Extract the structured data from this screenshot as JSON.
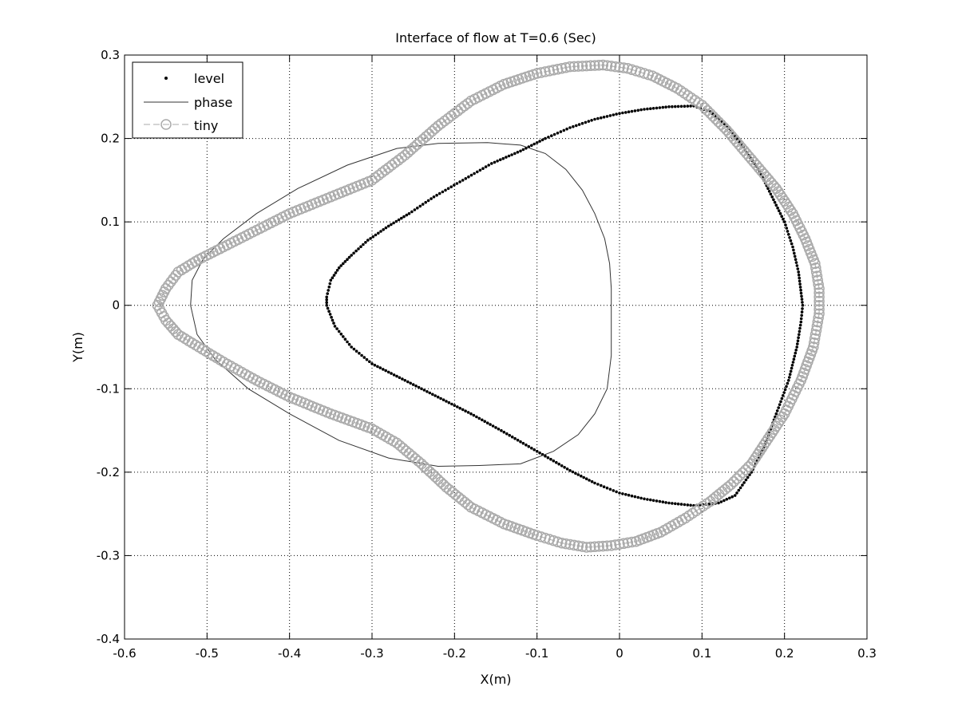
{
  "chart_data": {
    "type": "scatter",
    "title": "Interface of flow at T=0.6 (Sec)",
    "xlabel": "X(m)",
    "ylabel": "Y(m)",
    "xlim": [
      -0.6,
      0.3
    ],
    "ylim": [
      -0.4,
      0.3
    ],
    "xticks": [
      -0.6,
      -0.5,
      -0.4,
      -0.3,
      -0.2,
      -0.1,
      0,
      0.1,
      0.2,
      0.3
    ],
    "xtick_labels": [
      "-0.6",
      "-0.5",
      "-0.4",
      "-0.3",
      "-0.2",
      "-0.1",
      "0",
      "0.1",
      "0.2",
      "0.3"
    ],
    "yticks": [
      -0.4,
      -0.3,
      -0.2,
      -0.1,
      0,
      0.1,
      0.2,
      0.3
    ],
    "ytick_labels": [
      "-0.4",
      "-0.3",
      "-0.2",
      "-0.1",
      "0",
      "0.1",
      "0.2",
      "0.3"
    ],
    "grid": true,
    "legend_position": "top-left",
    "series": [
      {
        "name": "level",
        "style": "dots",
        "color": "#000000",
        "points": [
          [
            -0.355,
            0.01
          ],
          [
            -0.35,
            0.03
          ],
          [
            -0.34,
            0.045
          ],
          [
            -0.325,
            0.06
          ],
          [
            -0.305,
            0.078
          ],
          [
            -0.28,
            0.095
          ],
          [
            -0.255,
            0.11
          ],
          [
            -0.225,
            0.13
          ],
          [
            -0.19,
            0.15
          ],
          [
            -0.155,
            0.17
          ],
          [
            -0.12,
            0.185
          ],
          [
            -0.09,
            0.2
          ],
          [
            -0.06,
            0.213
          ],
          [
            -0.03,
            0.223
          ],
          [
            0.0,
            0.23
          ],
          [
            0.03,
            0.235
          ],
          [
            0.06,
            0.238
          ],
          [
            0.09,
            0.239
          ],
          [
            0.11,
            0.232
          ],
          [
            0.13,
            0.215
          ],
          [
            0.15,
            0.19
          ],
          [
            0.17,
            0.16
          ],
          [
            0.185,
            0.13
          ],
          [
            0.2,
            0.1
          ],
          [
            0.21,
            0.07
          ],
          [
            0.217,
            0.04
          ],
          [
            0.222,
            0.0
          ],
          [
            0.22,
            -0.02
          ],
          [
            0.215,
            -0.05
          ],
          [
            0.205,
            -0.09
          ],
          [
            0.19,
            -0.13
          ],
          [
            0.175,
            -0.17
          ],
          [
            0.16,
            -0.2
          ],
          [
            0.14,
            -0.228
          ],
          [
            0.12,
            -0.237
          ],
          [
            0.09,
            -0.24
          ],
          [
            0.06,
            -0.237
          ],
          [
            0.03,
            -0.232
          ],
          [
            0.0,
            -0.225
          ],
          [
            -0.03,
            -0.213
          ],
          [
            -0.06,
            -0.198
          ],
          [
            -0.1,
            -0.175
          ],
          [
            -0.14,
            -0.152
          ],
          [
            -0.18,
            -0.13
          ],
          [
            -0.22,
            -0.11
          ],
          [
            -0.26,
            -0.09
          ],
          [
            -0.3,
            -0.07
          ],
          [
            -0.325,
            -0.05
          ],
          [
            -0.345,
            -0.025
          ],
          [
            -0.355,
            0.0
          ],
          [
            -0.355,
            0.01
          ]
        ]
      },
      {
        "name": "phase",
        "style": "line",
        "color": "#333333",
        "points": [
          [
            -0.52,
            0.0
          ],
          [
            -0.518,
            0.03
          ],
          [
            -0.505,
            0.055
          ],
          [
            -0.48,
            0.08
          ],
          [
            -0.44,
            0.11
          ],
          [
            -0.39,
            0.14
          ],
          [
            -0.33,
            0.168
          ],
          [
            -0.27,
            0.188
          ],
          [
            -0.22,
            0.194
          ],
          [
            -0.16,
            0.195
          ],
          [
            -0.12,
            0.192
          ],
          [
            -0.09,
            0.182
          ],
          [
            -0.065,
            0.163
          ],
          [
            -0.045,
            0.138
          ],
          [
            -0.03,
            0.11
          ],
          [
            -0.018,
            0.08
          ],
          [
            -0.012,
            0.05
          ],
          [
            -0.01,
            0.02
          ],
          [
            -0.01,
            -0.02
          ],
          [
            -0.01,
            -0.06
          ],
          [
            -0.015,
            -0.1
          ],
          [
            -0.03,
            -0.13
          ],
          [
            -0.05,
            -0.155
          ],
          [
            -0.08,
            -0.175
          ],
          [
            -0.12,
            -0.19
          ],
          [
            -0.17,
            -0.192
          ],
          [
            -0.22,
            -0.193
          ],
          [
            -0.28,
            -0.183
          ],
          [
            -0.34,
            -0.162
          ],
          [
            -0.4,
            -0.13
          ],
          [
            -0.45,
            -0.1
          ],
          [
            -0.49,
            -0.065
          ],
          [
            -0.512,
            -0.035
          ],
          [
            -0.52,
            0.0
          ]
        ]
      },
      {
        "name": "tiny",
        "style": "circles-dashed",
        "color": "#aaaaaa",
        "points": [
          [
            -0.56,
            0.0
          ],
          [
            -0.55,
            0.02
          ],
          [
            -0.535,
            0.04
          ],
          [
            -0.51,
            0.055
          ],
          [
            -0.48,
            0.07
          ],
          [
            -0.44,
            0.09
          ],
          [
            -0.4,
            0.11
          ],
          [
            -0.35,
            0.13
          ],
          [
            -0.3,
            0.15
          ],
          [
            -0.26,
            0.18
          ],
          [
            -0.22,
            0.215
          ],
          [
            -0.18,
            0.245
          ],
          [
            -0.14,
            0.265
          ],
          [
            -0.1,
            0.278
          ],
          [
            -0.06,
            0.286
          ],
          [
            -0.02,
            0.288
          ],
          [
            0.01,
            0.284
          ],
          [
            0.04,
            0.275
          ],
          [
            0.07,
            0.26
          ],
          [
            0.1,
            0.24
          ],
          [
            0.13,
            0.21
          ],
          [
            0.16,
            0.175
          ],
          [
            0.19,
            0.14
          ],
          [
            0.21,
            0.11
          ],
          [
            0.225,
            0.08
          ],
          [
            0.237,
            0.05
          ],
          [
            0.242,
            0.02
          ],
          [
            0.242,
            -0.01
          ],
          [
            0.235,
            -0.05
          ],
          [
            0.22,
            -0.09
          ],
          [
            0.2,
            -0.13
          ],
          [
            0.18,
            -0.16
          ],
          [
            0.16,
            -0.19
          ],
          [
            0.135,
            -0.215
          ],
          [
            0.11,
            -0.235
          ],
          [
            0.08,
            -0.255
          ],
          [
            0.05,
            -0.272
          ],
          [
            0.02,
            -0.283
          ],
          [
            -0.01,
            -0.288
          ],
          [
            -0.04,
            -0.29
          ],
          [
            -0.07,
            -0.285
          ],
          [
            -0.1,
            -0.276
          ],
          [
            -0.14,
            -0.262
          ],
          [
            -0.18,
            -0.242
          ],
          [
            -0.21,
            -0.218
          ],
          [
            -0.24,
            -0.19
          ],
          [
            -0.27,
            -0.165
          ],
          [
            -0.3,
            -0.148
          ],
          [
            -0.35,
            -0.13
          ],
          [
            -0.4,
            -0.11
          ],
          [
            -0.44,
            -0.09
          ],
          [
            -0.48,
            -0.068
          ],
          [
            -0.51,
            -0.05
          ],
          [
            -0.535,
            -0.035
          ],
          [
            -0.55,
            -0.018
          ],
          [
            -0.56,
            0.0
          ]
        ]
      }
    ]
  }
}
